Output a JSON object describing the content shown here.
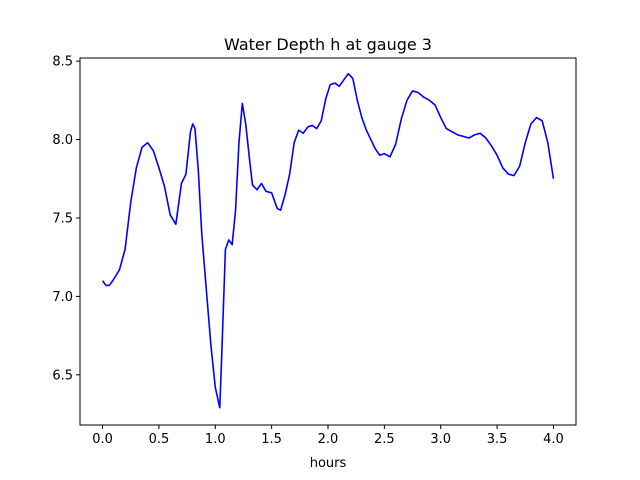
{
  "chart_data": {
    "type": "line",
    "title": "Water Depth h at gauge 3",
    "xlabel": "hours",
    "ylabel": "",
    "xlim": [
      -0.2,
      4.2
    ],
    "ylim": [
      6.18,
      8.52
    ],
    "xticks": [
      0.0,
      0.5,
      1.0,
      1.5,
      2.0,
      2.5,
      3.0,
      3.5,
      4.0
    ],
    "xtick_labels": [
      "0.0",
      "0.5",
      "1.0",
      "1.5",
      "2.0",
      "2.5",
      "3.0",
      "3.5",
      "4.0"
    ],
    "yticks": [
      6.5,
      7.0,
      7.5,
      8.0,
      8.5
    ],
    "ytick_labels": [
      "6.5",
      "7.0",
      "7.5",
      "8.0",
      "8.5"
    ],
    "grid": false,
    "series": [
      {
        "color": "#0000ff",
        "x": [
          0.0,
          0.03,
          0.06,
          0.1,
          0.15,
          0.2,
          0.25,
          0.3,
          0.35,
          0.4,
          0.45,
          0.5,
          0.55,
          0.6,
          0.65,
          0.7,
          0.74,
          0.78,
          0.8,
          0.82,
          0.85,
          0.88,
          0.92,
          0.96,
          1.0,
          1.04,
          1.06,
          1.09,
          1.12,
          1.15,
          1.18,
          1.21,
          1.24,
          1.27,
          1.3,
          1.33,
          1.37,
          1.41,
          1.45,
          1.5,
          1.55,
          1.58,
          1.62,
          1.66,
          1.7,
          1.74,
          1.78,
          1.82,
          1.86,
          1.9,
          1.94,
          1.98,
          2.02,
          2.06,
          2.1,
          2.14,
          2.18,
          2.22,
          2.26,
          2.3,
          2.34,
          2.38,
          2.42,
          2.46,
          2.5,
          2.55,
          2.6,
          2.65,
          2.7,
          2.75,
          2.8,
          2.85,
          2.9,
          2.95,
          3.0,
          3.05,
          3.1,
          3.15,
          3.2,
          3.25,
          3.3,
          3.35,
          3.4,
          3.45,
          3.5,
          3.55,
          3.6,
          3.65,
          3.7,
          3.75,
          3.8,
          3.85,
          3.9,
          3.95,
          4.0
        ],
        "y": [
          7.1,
          7.07,
          7.07,
          7.11,
          7.17,
          7.3,
          7.6,
          7.82,
          7.95,
          7.98,
          7.93,
          7.82,
          7.7,
          7.52,
          7.46,
          7.72,
          7.78,
          8.05,
          8.1,
          8.07,
          7.8,
          7.4,
          7.05,
          6.7,
          6.42,
          6.29,
          6.68,
          7.3,
          7.36,
          7.33,
          7.55,
          7.98,
          8.23,
          8.1,
          7.9,
          7.71,
          7.68,
          7.72,
          7.67,
          7.66,
          7.56,
          7.55,
          7.65,
          7.78,
          7.98,
          8.06,
          8.04,
          8.08,
          8.09,
          8.07,
          8.12,
          8.26,
          8.35,
          8.36,
          8.34,
          8.38,
          8.42,
          8.39,
          8.25,
          8.14,
          8.06,
          8.0,
          7.94,
          7.9,
          7.91,
          7.89,
          7.97,
          8.13,
          8.25,
          8.31,
          8.3,
          8.27,
          8.25,
          8.22,
          8.14,
          8.07,
          8.05,
          8.03,
          8.02,
          8.01,
          8.03,
          8.04,
          8.01,
          7.96,
          7.9,
          7.82,
          7.78,
          7.77,
          7.83,
          7.98,
          8.1,
          8.14,
          8.12,
          7.98,
          7.75
        ]
      }
    ]
  }
}
